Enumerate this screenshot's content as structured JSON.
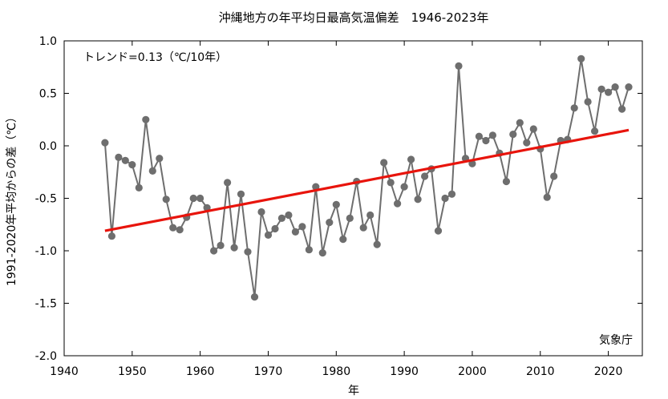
{
  "chart_data": {
    "type": "line",
    "title": "沖縄地方の年平均日最高気温偏差　1946-2023年",
    "xlabel": "年",
    "ylabel": "1991-2020年平均からの差（℃）",
    "xlim": [
      1940,
      2025
    ],
    "ylim": [
      -2.0,
      1.0
    ],
    "x_ticks": [
      "1940",
      "1950",
      "1960",
      "1970",
      "1980",
      "1990",
      "2000",
      "2010",
      "2020"
    ],
    "y_ticks": [
      "1.0",
      "0.5",
      "0.0",
      "-0.5",
      "-1.0",
      "-1.5",
      "-2.0"
    ],
    "trend_label": "トレンド=0.13（℃/10年）",
    "source_label": "気象庁",
    "grid": false,
    "series": [
      {
        "color": "#6e6e6e",
        "x": [
          1946,
          1947,
          1948,
          1949,
          1950,
          1951,
          1952,
          1953,
          1954,
          1955,
          1956,
          1957,
          1958,
          1959,
          1960,
          1961,
          1962,
          1963,
          1964,
          1965,
          1966,
          1967,
          1968,
          1969,
          1970,
          1971,
          1972,
          1973,
          1974,
          1975,
          1976,
          1977,
          1978,
          1979,
          1980,
          1981,
          1982,
          1983,
          1984,
          1985,
          1986,
          1987,
          1988,
          1989,
          1990,
          1991,
          1992,
          1993,
          1994,
          1995,
          1996,
          1997,
          1998,
          1999,
          2000,
          2001,
          2002,
          2003,
          2004,
          2005,
          2006,
          2007,
          2008,
          2009,
          2010,
          2011,
          2012,
          2013,
          2014,
          2015,
          2016,
          2017,
          2018,
          2019,
          2020,
          2021,
          2022,
          2023
        ],
        "values": [
          0.03,
          -0.86,
          -0.11,
          -0.14,
          -0.18,
          -0.4,
          0.25,
          -0.24,
          -0.12,
          -0.51,
          -0.78,
          -0.8,
          -0.68,
          -0.5,
          -0.5,
          -0.59,
          -1.0,
          -0.95,
          -0.35,
          -0.97,
          -0.46,
          -1.01,
          -1.44,
          -0.63,
          -0.85,
          -0.79,
          -0.69,
          -0.66,
          -0.82,
          -0.77,
          -0.99,
          -0.39,
          -1.02,
          -0.73,
          -0.56,
          -0.89,
          -0.69,
          -0.34,
          -0.78,
          -0.66,
          -0.94,
          -0.16,
          -0.35,
          -0.55,
          -0.39,
          -0.13,
          -0.51,
          -0.29,
          -0.22,
          -0.81,
          -0.5,
          -0.46,
          0.76,
          -0.12,
          -0.17,
          0.09,
          0.05,
          0.1,
          -0.07,
          -0.34,
          0.11,
          0.22,
          0.03,
          0.16,
          -0.03,
          -0.49,
          -0.29,
          0.05,
          0.06,
          0.36,
          0.83,
          0.42,
          0.14,
          0.54,
          0.51,
          0.56,
          0.35,
          0.56
        ]
      }
    ],
    "trend": {
      "color": "#e8140c",
      "x": [
        1946,
        2023
      ],
      "values": [
        -0.81,
        0.15
      ]
    }
  }
}
